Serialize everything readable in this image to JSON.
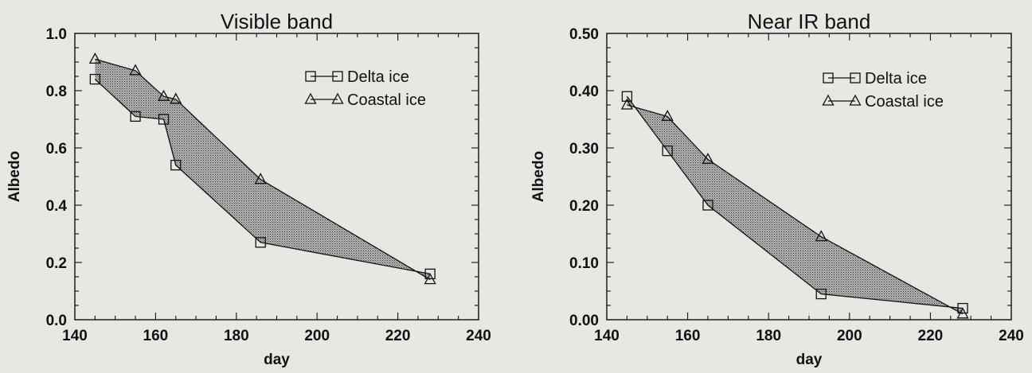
{
  "chart_data": [
    {
      "type": "line",
      "title": "Visible band",
      "xlabel": "day",
      "ylabel": "Albedo",
      "xlim": [
        140,
        240
      ],
      "ylim": [
        0.0,
        1.0
      ],
      "xticks": [
        140,
        160,
        180,
        200,
        220,
        240
      ],
      "xtick_labels": [
        "140",
        "160",
        "180",
        "200",
        "220",
        "240"
      ],
      "yticks": [
        0.0,
        0.2,
        0.4,
        0.6,
        0.8,
        1.0
      ],
      "ytick_labels": [
        "0.0",
        "0.2",
        "0.4",
        "0.6",
        "0.8",
        "1.0"
      ],
      "shaded_between_series": true,
      "grid": false,
      "legend_position": "top-right",
      "series": [
        {
          "name": "Delta ice",
          "marker": "square",
          "x": [
            145,
            155,
            162,
            165,
            186,
            228
          ],
          "y": [
            0.84,
            0.71,
            0.7,
            0.54,
            0.27,
            0.16
          ]
        },
        {
          "name": "Coastal ice",
          "marker": "triangle",
          "x": [
            145,
            155,
            162,
            165,
            186,
            228
          ],
          "y": [
            0.91,
            0.87,
            0.78,
            0.77,
            0.49,
            0.14
          ]
        }
      ]
    },
    {
      "type": "line",
      "title": "Near IR band",
      "xlabel": "day",
      "ylabel": "Albedo",
      "xlim": [
        140,
        240
      ],
      "ylim": [
        0.0,
        0.5
      ],
      "xticks": [
        140,
        160,
        180,
        200,
        220,
        240
      ],
      "xtick_labels": [
        "140",
        "160",
        "180",
        "200",
        "220",
        "240"
      ],
      "yticks": [
        0.0,
        0.1,
        0.2,
        0.3,
        0.4,
        0.5
      ],
      "ytick_labels": [
        "0.00",
        "0.10",
        "0.20",
        "0.30",
        "0.40",
        "0.50"
      ],
      "shaded_between_series": true,
      "grid": false,
      "legend_position": "top-right",
      "series": [
        {
          "name": "Delta ice",
          "marker": "square",
          "x": [
            145,
            155,
            165,
            193,
            228
          ],
          "y": [
            0.39,
            0.295,
            0.2,
            0.045,
            0.02
          ]
        },
        {
          "name": "Coastal ice",
          "marker": "triangle",
          "x": [
            145,
            155,
            165,
            193,
            228
          ],
          "y": [
            0.375,
            0.355,
            0.28,
            0.145,
            0.01
          ]
        }
      ]
    }
  ],
  "colors": {
    "background": "#e9e7e4",
    "ink": "#111111",
    "shade": "#8c8c8c"
  }
}
